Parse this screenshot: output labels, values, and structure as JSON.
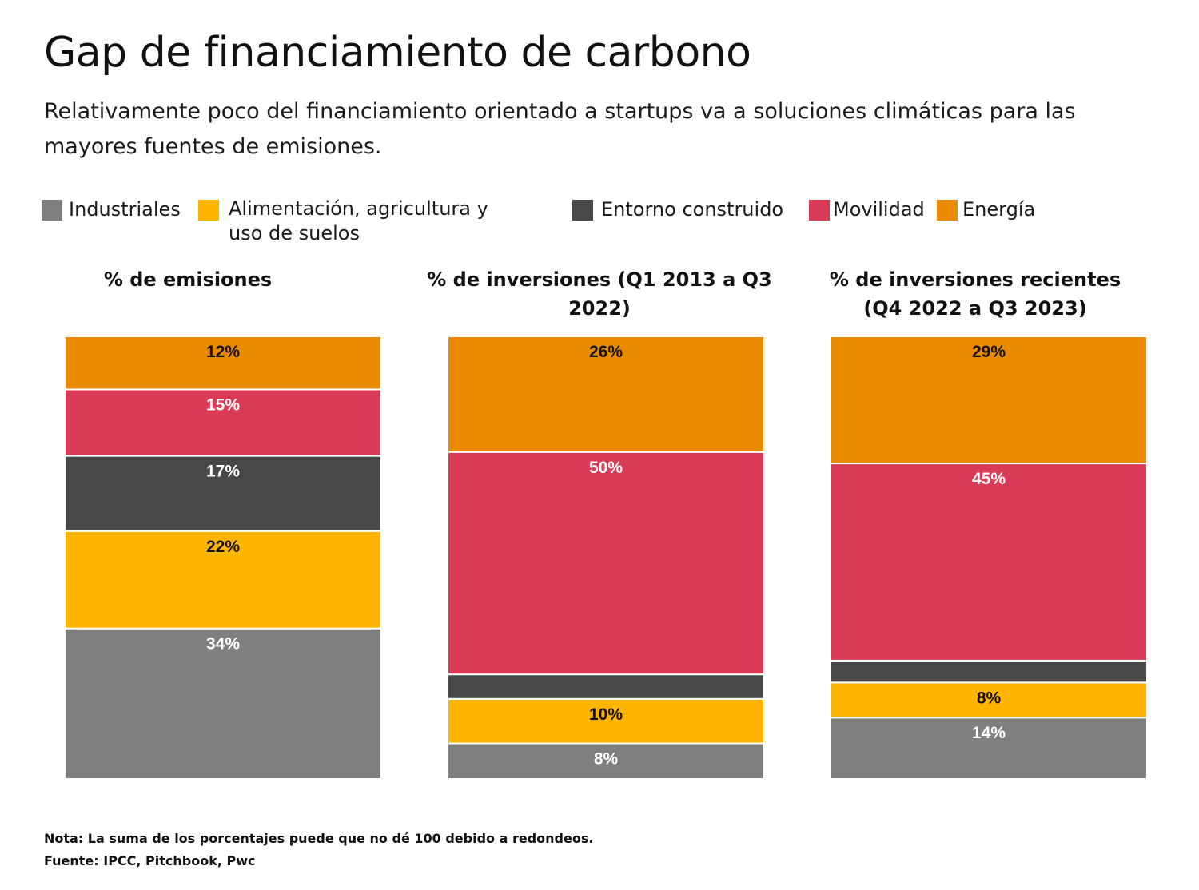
{
  "title": "Gap de financiamiento de carbono",
  "subtitle": "Relativamente poco del financiamiento orientado a startups va a soluciones climáticas para las mayores fuentes de emisiones.",
  "legend": [
    {
      "label": "Industriales",
      "color": "#7f7f7f"
    },
    {
      "label": "Alimentación, agricultura y uso de suelos",
      "color": "#ffb400"
    },
    {
      "label": "Entorno construido",
      "color": "#484848"
    },
    {
      "label": "Movilidad",
      "color": "#d93a55"
    },
    {
      "label": "Energía",
      "color": "#e98a00"
    }
  ],
  "chart_data": {
    "type": "bar",
    "stacked": true,
    "normalized": true,
    "categories": [
      "% de emisiones",
      "% de inversiones (Q1 2013 a Q3 2022)",
      "% de inversiones recientes (Q4 2022 a Q3 2023)"
    ],
    "series": [
      {
        "name": "Industriales",
        "color": "#7f7f7f",
        "values": [
          34,
          8,
          14
        ],
        "labels": [
          "34%",
          "8%",
          "14%"
        ],
        "label_color": "#ffffff"
      },
      {
        "name": "Alimentación, agricultura y uso de suelos",
        "color": "#ffb400",
        "values": [
          22,
          10,
          8
        ],
        "labels": [
          "22%",
          "10%",
          "8%"
        ],
        "label_color": "#111111"
      },
      {
        "name": "Entorno construido",
        "color": "#484848",
        "values": [
          17,
          5.5,
          5
        ],
        "labels": [
          "17%",
          "",
          ""
        ],
        "label_color": "#ffffff"
      },
      {
        "name": "Movilidad",
        "color": "#d93a55",
        "values": [
          15,
          50,
          45
        ],
        "labels": [
          "15%",
          "50%",
          "45%"
        ],
        "label_color": "#ffffff"
      },
      {
        "name": "Energía",
        "color": "#e98a00",
        "values": [
          12,
          26,
          29
        ],
        "labels": [
          "12%",
          "26%",
          "29%"
        ],
        "label_color": "#111111"
      }
    ],
    "legend_position": "top",
    "grid": false
  },
  "notes": {
    "nota": "Nota: La suma de los porcentajes puede que no dé 100 debido a redondeos.",
    "fuente": "Fuente: IPCC, Pitchbook, Pwc"
  }
}
